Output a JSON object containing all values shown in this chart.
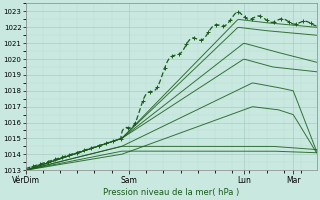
{
  "xlabel": "Pression niveau de la mer( hPa )",
  "ylim": [
    1013,
    1023.5
  ],
  "yticks": [
    1013,
    1014,
    1015,
    1016,
    1017,
    1018,
    1019,
    1020,
    1021,
    1022,
    1023
  ],
  "xtick_pos": [
    0.0,
    0.355,
    0.75,
    0.92
  ],
  "xtick_labels": [
    "VérDim",
    "Sam",
    "Lun",
    "Mar"
  ],
  "background_color": "#c8e8e0",
  "line_color": "#1a5c1a",
  "figsize": [
    3.2,
    2.0
  ],
  "dpi": 100
}
